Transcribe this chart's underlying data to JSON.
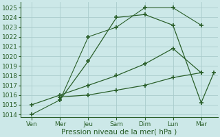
{
  "x_labels": [
    "Ven",
    "Mer",
    "Jeu",
    "Sam",
    "Dim",
    "Lun",
    "Mar"
  ],
  "x_positions": [
    0,
    1,
    2,
    3,
    4,
    5,
    6
  ],
  "lines": [
    {
      "points_x": [
        0,
        1,
        2,
        3,
        4,
        5,
        6
      ],
      "points_y": [
        1014.0,
        1015.5,
        1022.0,
        1023.0,
        1025.0,
        1025.0,
        1023.2
      ],
      "style": "dotted"
    },
    {
      "points_x": [
        1,
        2,
        3,
        4,
        5,
        6,
        6.45
      ],
      "points_y": [
        1015.5,
        1019.5,
        1024.0,
        1024.3,
        1023.2,
        1015.2,
        1018.3
      ],
      "style": "solid"
    },
    {
      "points_x": [
        0,
        1,
        2,
        3,
        4,
        5,
        6
      ],
      "points_y": [
        1015.0,
        1016.0,
        1017.0,
        1018.0,
        1019.2,
        1020.8,
        1018.3
      ],
      "style": "solid"
    },
    {
      "points_x": [
        1,
        2,
        3,
        4,
        5,
        6
      ],
      "points_y": [
        1015.8,
        1016.0,
        1016.5,
        1017.0,
        1017.8,
        1018.3
      ],
      "style": "solid"
    }
  ],
  "ylim": [
    1013.7,
    1025.6
  ],
  "yticks": [
    1014,
    1015,
    1016,
    1017,
    1018,
    1019,
    1020,
    1021,
    1022,
    1023,
    1024,
    1025
  ],
  "line_color": "#2a5f2a",
  "marker": "+",
  "marker_size": 5,
  "bg_color": "#cce8e8",
  "grid_color": "#aacccc",
  "xlabel": "Pression niveau de la mer( hPa )",
  "xlabel_fontsize": 7.5,
  "tick_fontsize": 6.5,
  "figsize": [
    3.2,
    2.0
  ],
  "dpi": 100
}
